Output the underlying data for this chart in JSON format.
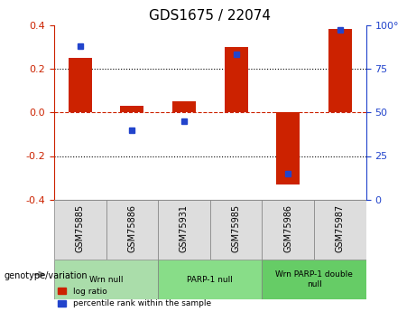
{
  "title": "GDS1675 / 22074",
  "samples": [
    "GSM75885",
    "GSM75886",
    "GSM75931",
    "GSM75985",
    "GSM75986",
    "GSM75987"
  ],
  "log_ratio": [
    0.25,
    0.03,
    0.05,
    0.3,
    -0.33,
    0.38
  ],
  "percentile_rank": [
    88,
    40,
    45,
    83,
    15,
    97
  ],
  "ylim_left": [
    -0.4,
    0.4
  ],
  "ylim_right": [
    0,
    100
  ],
  "yticks_left": [
    -0.4,
    -0.2,
    0.0,
    0.2,
    0.4
  ],
  "yticks_right": [
    0,
    25,
    50,
    75,
    100
  ],
  "bar_color": "#cc2200",
  "dot_color": "#2244cc",
  "zero_line_color": "#cc2200",
  "grid_color": "#000000",
  "groups": [
    {
      "label": "Wrn null",
      "samples": [
        "GSM75885",
        "GSM75886"
      ],
      "color": "#aaddaa"
    },
    {
      "label": "PARP-1 null",
      "samples": [
        "GSM75931",
        "GSM75985"
      ],
      "color": "#88dd88"
    },
    {
      "label": "Wrn PARP-1 double\nnull",
      "samples": [
        "GSM75986",
        "GSM75987"
      ],
      "color": "#66cc66"
    }
  ],
  "legend_items": [
    {
      "label": "log ratio",
      "color": "#cc2200"
    },
    {
      "label": "percentile rank within the sample",
      "color": "#2244cc"
    }
  ],
  "genotype_label": "genotype/variation"
}
